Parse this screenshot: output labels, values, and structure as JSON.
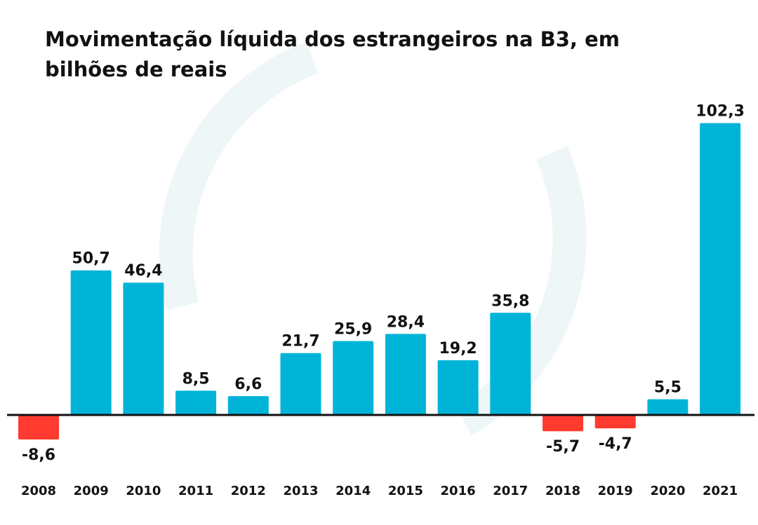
{
  "chart_data": {
    "type": "bar",
    "title": "Movimentação líquida dos estrangeiros na B3, em bilhões de reais",
    "title_lines": [
      "Movimentação líquida dos estrangeiros na B3, em",
      "bilhões de reais"
    ],
    "categories": [
      "2008",
      "2009",
      "2010",
      "2011",
      "2012",
      "2013",
      "2014",
      "2015",
      "2016",
      "2017",
      "2018",
      "2019",
      "2020",
      "2021"
    ],
    "values": [
      -8.6,
      50.7,
      46.4,
      8.5,
      6.6,
      21.7,
      25.9,
      28.4,
      19.2,
      35.8,
      -5.7,
      -4.7,
      5.5,
      102.3
    ],
    "value_labels": [
      "-8,6",
      "50,7",
      "46,4",
      "8,5",
      "6,6",
      "21,7",
      "25,9",
      "28,4",
      "19,2",
      "35,8",
      "-5,7",
      "-4,7",
      "5,5",
      "102,3"
    ],
    "xlabel": "",
    "ylabel": "",
    "ylim": [
      -10,
      110
    ],
    "grid": false,
    "legend": "none",
    "colors": {
      "positive": "#00b4d8",
      "negative": "#ff3b30",
      "baseline": "#111111",
      "watermark": "#eef6f8"
    }
  }
}
